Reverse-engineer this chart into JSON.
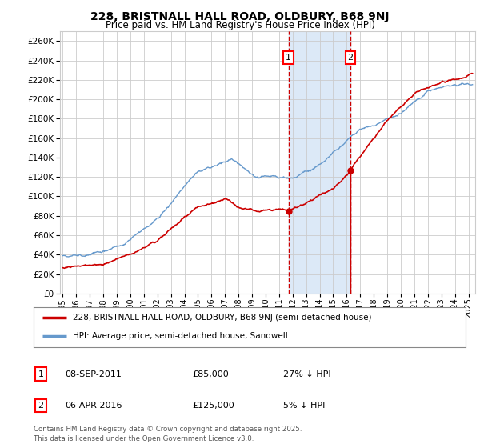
{
  "title": "228, BRISTNALL HALL ROAD, OLDBURY, B68 9NJ",
  "subtitle": "Price paid vs. HM Land Registry's House Price Index (HPI)",
  "legend_line1": "228, BRISTNALL HALL ROAD, OLDBURY, B68 9NJ (semi-detached house)",
  "legend_line2": "HPI: Average price, semi-detached house, Sandwell",
  "annotation1_label": "1",
  "annotation1_date": "08-SEP-2011",
  "annotation1_price": "£85,000",
  "annotation1_hpi": "27% ↓ HPI",
  "annotation2_label": "2",
  "annotation2_date": "06-APR-2016",
  "annotation2_price": "£125,000",
  "annotation2_hpi": "5% ↓ HPI",
  "footnote": "Contains HM Land Registry data © Crown copyright and database right 2025.\nThis data is licensed under the Open Government Licence v3.0.",
  "vline1_year": 2011.69,
  "vline2_year": 2016.27,
  "sale1_year": 2011.69,
  "sale1_price": 85000,
  "sale2_year": 2016.27,
  "sale2_price": 125000,
  "shade_color": "#dce9f7",
  "vline_color": "#cc0000",
  "hpi_color": "#6699cc",
  "price_color": "#cc0000",
  "ylim_max": 270000,
  "xlim_start": 1994.8,
  "xlim_end": 2025.5,
  "background_color": "#ffffff",
  "grid_color": "#cccccc",
  "yticks": [
    0,
    20000,
    40000,
    60000,
    80000,
    100000,
    120000,
    140000,
    160000,
    180000,
    200000,
    220000,
    240000,
    260000
  ]
}
